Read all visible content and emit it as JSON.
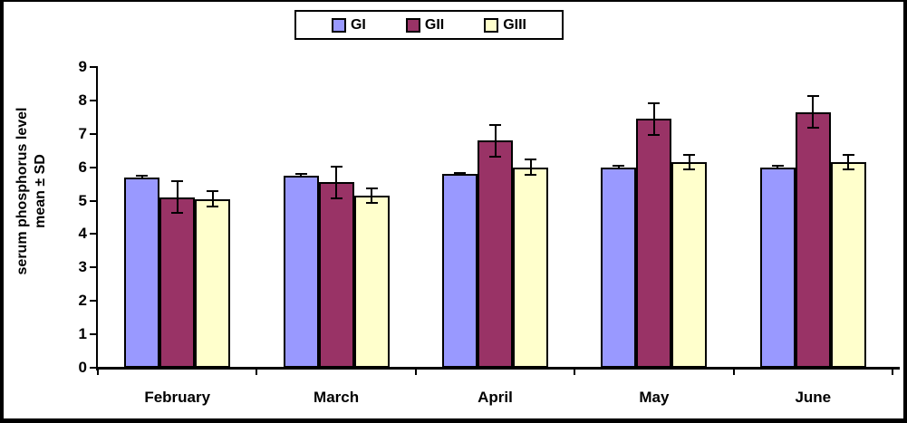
{
  "frame": {
    "background": "#ffffff",
    "border_color": "#000000"
  },
  "legend": {
    "position": "top-center",
    "items": [
      {
        "label": "GI",
        "color": "#9999FF"
      },
      {
        "label": "GII",
        "color": "#993366"
      },
      {
        "label": "GIII",
        "color": "#FFFFCC"
      }
    ]
  },
  "chart_data": {
    "type": "bar",
    "title": "",
    "categories": [
      "February",
      "March",
      "April",
      "May",
      "June"
    ],
    "series": [
      {
        "name": "GI",
        "color": "#9999FF",
        "values": [
          5.7,
          5.75,
          5.8,
          6.0,
          6.0
        ],
        "errors": [
          0.07,
          0.07,
          0.05,
          0.06,
          0.06
        ]
      },
      {
        "name": "GII",
        "color": "#993366",
        "values": [
          5.1,
          5.55,
          6.8,
          7.45,
          7.65
        ],
        "errors": [
          0.5,
          0.5,
          0.5,
          0.5,
          0.5
        ]
      },
      {
        "name": "GIII",
        "color": "#FFFFCC",
        "values": [
          5.05,
          5.15,
          6.0,
          6.15,
          6.15
        ],
        "errors": [
          0.25,
          0.25,
          0.25,
          0.25,
          0.25
        ]
      }
    ],
    "ylabel_line1": "serum phosphorus level",
    "ylabel_line2": "mean ± SD",
    "xlabel": "",
    "ylim": [
      0,
      9
    ],
    "yticks": [
      0,
      1,
      2,
      3,
      4,
      5,
      6,
      7,
      8,
      9
    ],
    "grid": false,
    "error_bars": true,
    "legend_position": "top-center",
    "axis_color": "#000000"
  }
}
